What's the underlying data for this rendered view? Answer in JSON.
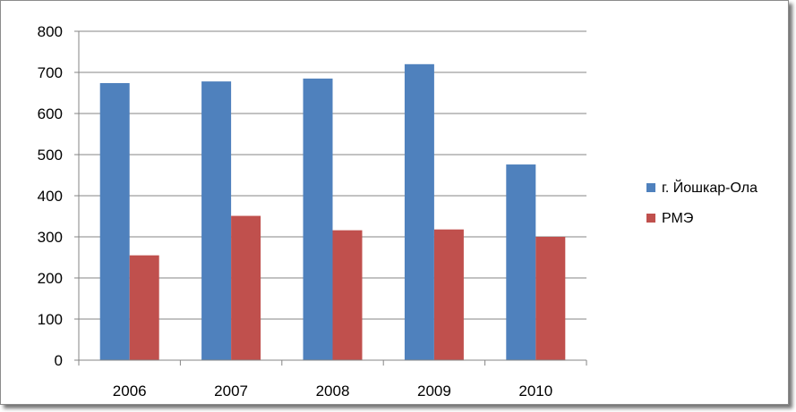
{
  "chart_data": {
    "type": "bar",
    "categories": [
      "2006",
      "2007",
      "2008",
      "2009",
      "2010"
    ],
    "series": [
      {
        "name": "г. Йошкар-Ола",
        "values": [
          674,
          678,
          685,
          720,
          476
        ],
        "color": "#4f81bd"
      },
      {
        "name": "РМЭ",
        "values": [
          255,
          351,
          316,
          318,
          300
        ],
        "color": "#c0504d"
      }
    ],
    "y_ticks": [
      "0",
      "100",
      "200",
      "300",
      "400",
      "500",
      "600",
      "700",
      "800"
    ],
    "ylim": [
      0,
      800
    ],
    "grid": true,
    "legend_position": "right"
  }
}
